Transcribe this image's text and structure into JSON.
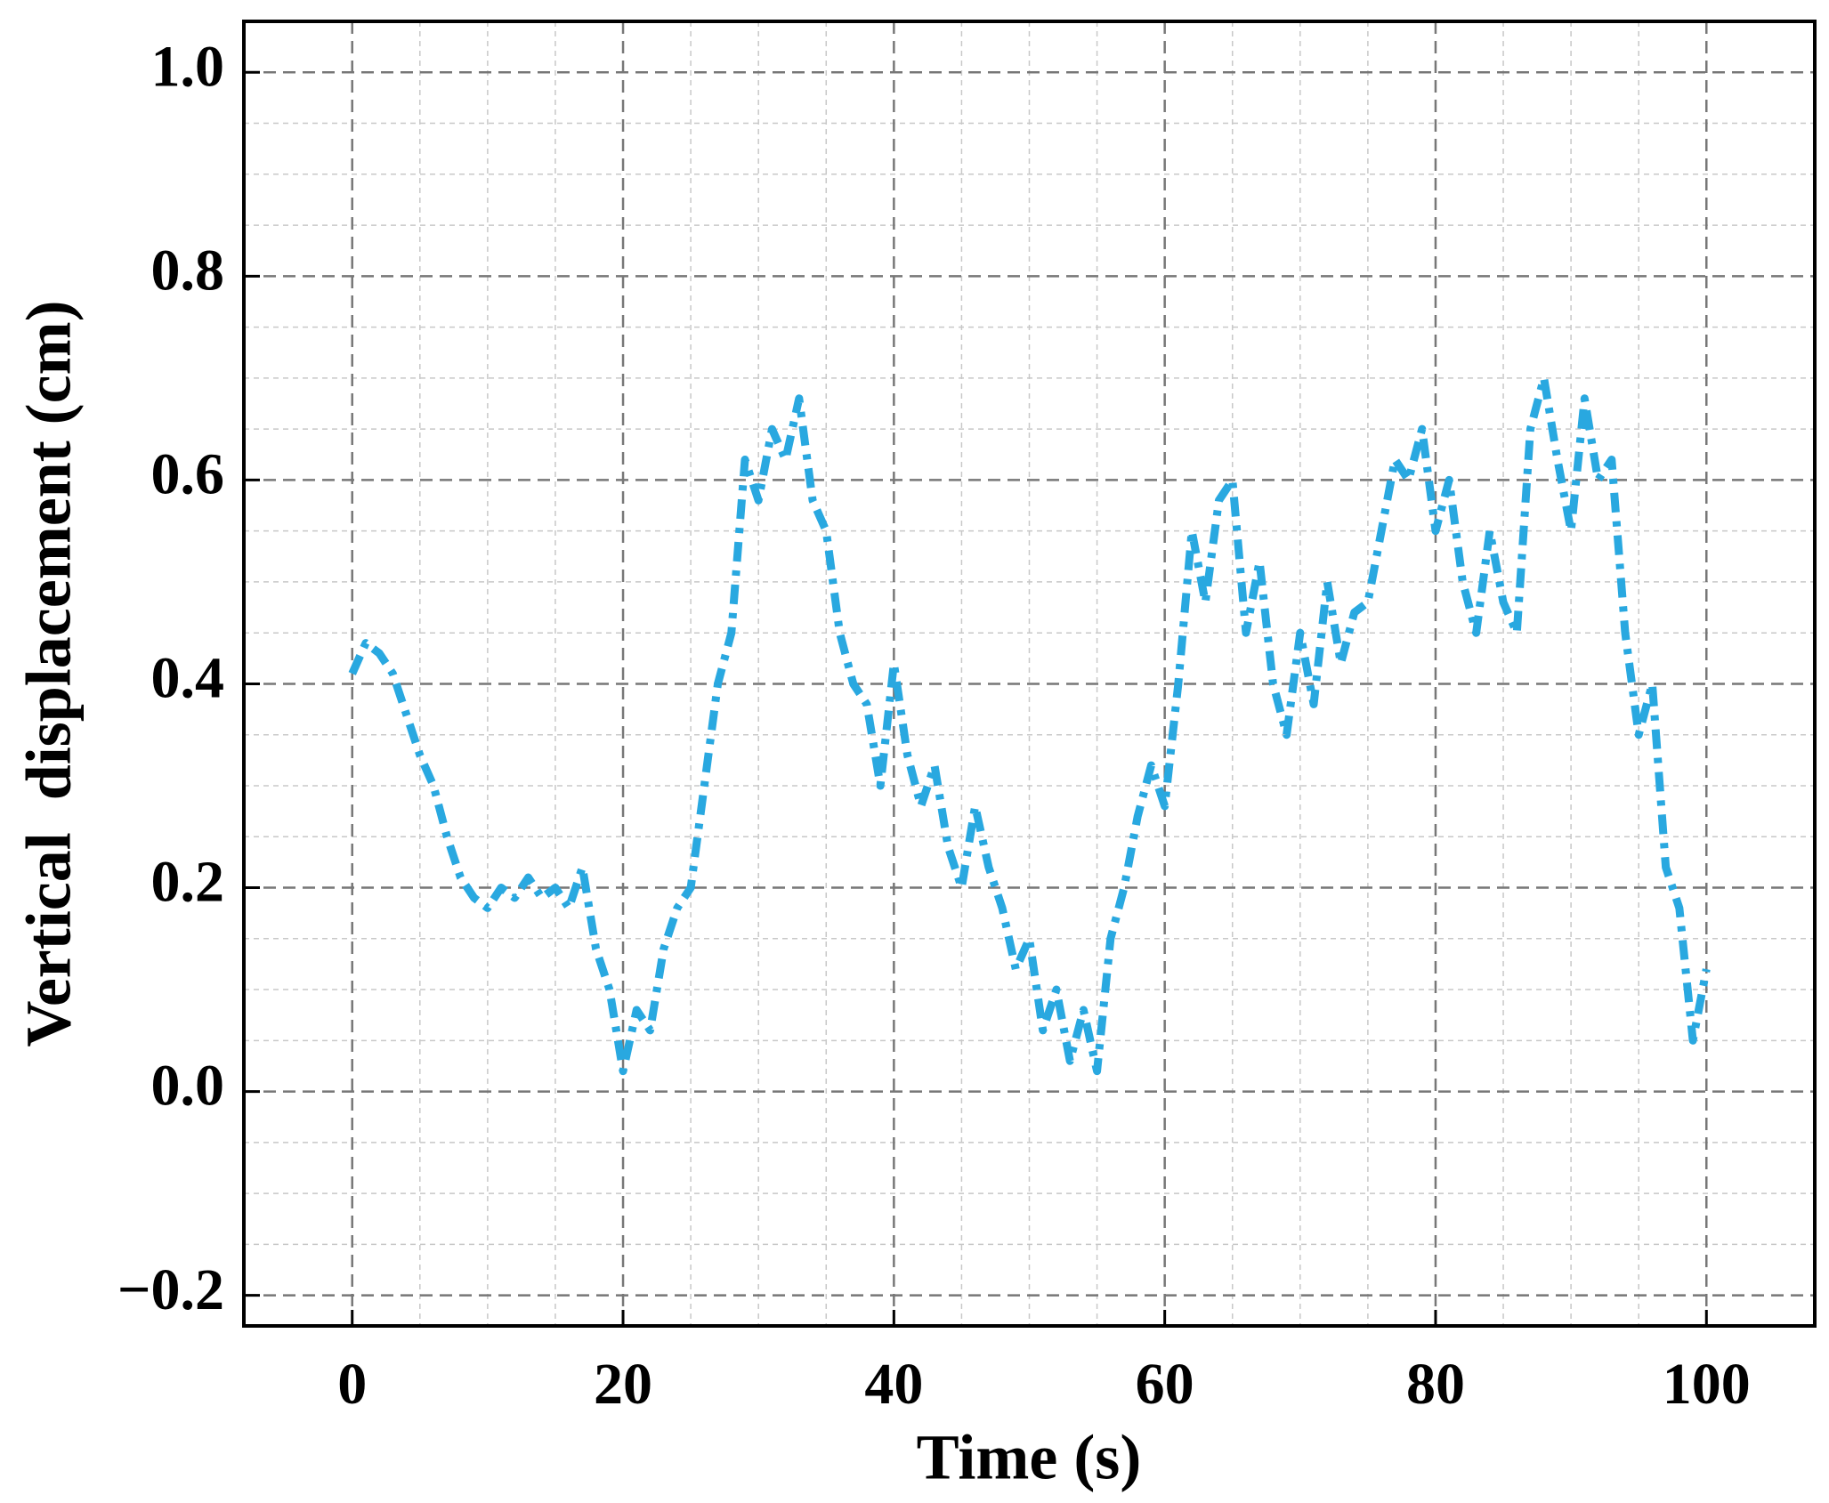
{
  "chart_data": {
    "type": "line",
    "x_label": "Time (s)",
    "y_label": "Vertical  displacement (cm)",
    "x": [
      0,
      1,
      2,
      3,
      4,
      5,
      6,
      7,
      8,
      9,
      10,
      11,
      12,
      13,
      14,
      15,
      16,
      17,
      18,
      19,
      20,
      21,
      22,
      23,
      24,
      25,
      26,
      27,
      28,
      29,
      30,
      31,
      32,
      33,
      34,
      35,
      36,
      37,
      38,
      39,
      40,
      41,
      42,
      43,
      44,
      45,
      46,
      47,
      48,
      49,
      50,
      51,
      52,
      53,
      54,
      55,
      56,
      57,
      58,
      59,
      60,
      61,
      62,
      63,
      64,
      65,
      66,
      67,
      68,
      69,
      70,
      71,
      72,
      73,
      74,
      75,
      76,
      77,
      78,
      79,
      80,
      81,
      82,
      83,
      84,
      85,
      86,
      87,
      88,
      89,
      90,
      91,
      92,
      93,
      94,
      95,
      96,
      97,
      98,
      99,
      100
    ],
    "series": [
      {
        "color": "#29a8e0",
        "values": [
          0.41,
          0.44,
          0.43,
          0.41,
          0.37,
          0.33,
          0.3,
          0.25,
          0.21,
          0.19,
          0.18,
          0.2,
          0.19,
          0.21,
          0.19,
          0.2,
          0.18,
          0.22,
          0.14,
          0.1,
          0.02,
          0.08,
          0.06,
          0.14,
          0.18,
          0.2,
          0.3,
          0.4,
          0.45,
          0.62,
          0.58,
          0.65,
          0.62,
          0.68,
          0.58,
          0.55,
          0.45,
          0.4,
          0.38,
          0.3,
          0.42,
          0.33,
          0.28,
          0.32,
          0.24,
          0.2,
          0.28,
          0.22,
          0.18,
          0.12,
          0.15,
          0.06,
          0.1,
          0.03,
          0.08,
          0.02,
          0.15,
          0.2,
          0.27,
          0.32,
          0.28,
          0.4,
          0.55,
          0.48,
          0.58,
          0.6,
          0.45,
          0.52,
          0.4,
          0.35,
          0.45,
          0.38,
          0.5,
          0.42,
          0.47,
          0.48,
          0.55,
          0.62,
          0.6,
          0.65,
          0.55,
          0.6,
          0.5,
          0.45,
          0.55,
          0.48,
          0.45,
          0.65,
          0.7,
          0.62,
          0.55,
          0.68,
          0.6,
          0.62,
          0.45,
          0.35,
          0.4,
          0.22,
          0.18,
          0.05,
          0.12
        ]
      }
    ],
    "xlim": [
      -8,
      108
    ],
    "ylim": [
      -0.23,
      1.05
    ],
    "xticks": [
      0,
      20,
      40,
      60,
      80,
      100
    ],
    "yticks": [
      {
        "value": -0.2,
        "label": "−0.2"
      },
      {
        "value": 0,
        "label": "0.0"
      },
      {
        "value": 0.2,
        "label": "0.2"
      },
      {
        "value": 0.4,
        "label": "0.4"
      },
      {
        "value": 0.6,
        "label": "0.6"
      },
      {
        "value": 0.8,
        "label": "0.8"
      },
      {
        "value": 1.0,
        "label": "1.0"
      }
    ],
    "grid": true
  }
}
